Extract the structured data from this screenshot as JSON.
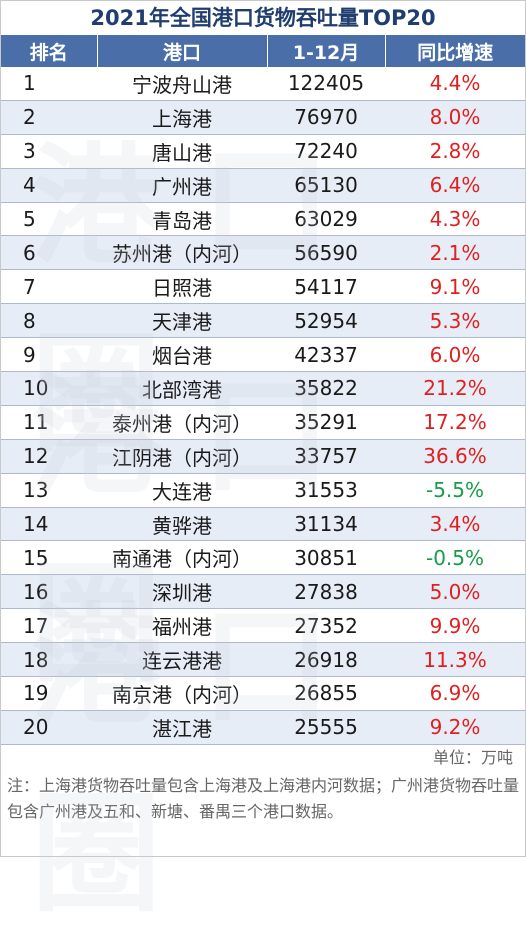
{
  "title": "2021年全国港口货物吞吐量TOP20",
  "columns": [
    "排名",
    "港口",
    "1-12月",
    "同比增速"
  ],
  "rows": [
    {
      "rank": "1",
      "port": "宁波舟山港",
      "throughput": "122405",
      "growth": "4.4%"
    },
    {
      "rank": "2",
      "port": "上海港",
      "throughput": "76970",
      "growth": "8.0%"
    },
    {
      "rank": "3",
      "port": "唐山港",
      "throughput": "72240",
      "growth": "2.8%"
    },
    {
      "rank": "4",
      "port": "广州港",
      "throughput": "65130",
      "growth": "6.4%"
    },
    {
      "rank": "5",
      "port": "青岛港",
      "throughput": "63029",
      "growth": "4.3%"
    },
    {
      "rank": "6",
      "port": "苏州港（内河）",
      "throughput": "56590",
      "growth": "2.1%"
    },
    {
      "rank": "7",
      "port": "日照港",
      "throughput": "54117",
      "growth": "9.1%"
    },
    {
      "rank": "8",
      "port": "天津港",
      "throughput": "52954",
      "growth": "5.3%"
    },
    {
      "rank": "9",
      "port": "烟台港",
      "throughput": "42337",
      "growth": "6.0%"
    },
    {
      "rank": "10",
      "port": "北部湾港",
      "throughput": "35822",
      "growth": "21.2%"
    },
    {
      "rank": "11",
      "port": "泰州港（内河）",
      "throughput": "35291",
      "growth": "17.2%"
    },
    {
      "rank": "12",
      "port": "江阴港（内河）",
      "throughput": "33757",
      "growth": "36.6%"
    },
    {
      "rank": "13",
      "port": "大连港",
      "throughput": "31553",
      "growth": "-5.5%"
    },
    {
      "rank": "14",
      "port": "黄骅港",
      "throughput": "31134",
      "growth": "3.4%"
    },
    {
      "rank": "15",
      "port": "南通港（内河）",
      "throughput": "30851",
      "growth": "-0.5%"
    },
    {
      "rank": "16",
      "port": "深圳港",
      "throughput": "27838",
      "growth": "5.0%"
    },
    {
      "rank": "17",
      "port": "福州港",
      "throughput": "27352",
      "growth": "9.9%"
    },
    {
      "rank": "18",
      "port": "连云港港",
      "throughput": "26918",
      "growth": "11.3%"
    },
    {
      "rank": "19",
      "port": "南京港（内河）",
      "throughput": "26855",
      "growth": "6.9%"
    },
    {
      "rank": "20",
      "port": "湛江港",
      "throughput": "25555",
      "growth": "9.2%"
    }
  ],
  "unit": "单位：万吨",
  "note": "注：上海港货物吞吐量包含上海港及上海港内河数据；广州港货物吞吐量包含广州港及五和、新塘、番禺三个港口数据。",
  "watermark": [
    "港口圈",
    "港口圈",
    "港口圈"
  ],
  "colors": {
    "positive": "#e02020",
    "negative": "#179c4a",
    "header": "#4a6ea8",
    "title": "#1f3d6e"
  }
}
